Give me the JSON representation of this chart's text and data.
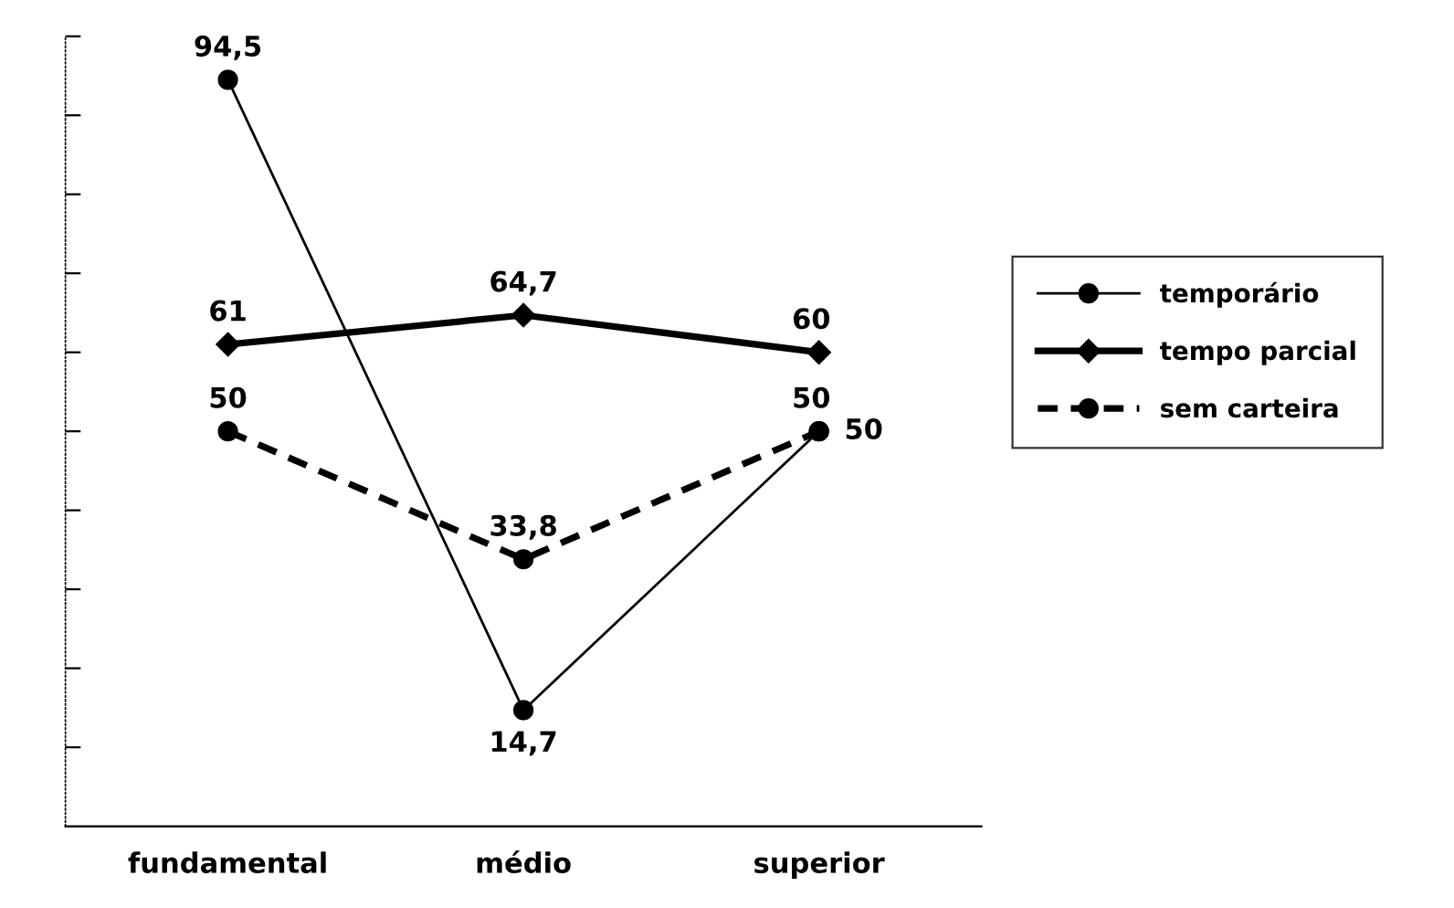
{
  "chart_data": {
    "type": "line",
    "categories": [
      "fundamental",
      "médio",
      "superior"
    ],
    "series": [
      {
        "name": "temporário",
        "color": "#000000",
        "values": [
          94.5,
          14.7,
          50
        ],
        "value_labels": [
          "94,5",
          "14,7",
          "50"
        ],
        "marker": "circle",
        "line_style": "solid"
      },
      {
        "name": "tempo parcial",
        "color": "#000000",
        "values": [
          61,
          64.7,
          60
        ],
        "value_labels": [
          "61",
          "64,7",
          "60"
        ],
        "marker": "diamond",
        "line_style": "solid"
      },
      {
        "name": "sem carteira",
        "color": "#000000",
        "values": [
          50,
          33.8,
          50
        ],
        "value_labels": [
          "50",
          "33,8",
          "50"
        ],
        "marker": "circle",
        "line_style": "dashed"
      }
    ],
    "ylim": [
      0,
      100
    ],
    "yticks": [
      {
        "value": 10,
        "label": null
      },
      {
        "value": 20,
        "label": null
      },
      {
        "value": 30,
        "label": null
      },
      {
        "value": 40,
        "label": null
      },
      {
        "value": 50,
        "label": null
      },
      {
        "value": 60,
        "label": null
      },
      {
        "value": 70,
        "label": null
      },
      {
        "value": 80,
        "label": null
      },
      {
        "value": 90,
        "label": null
      },
      {
        "value": 100,
        "label": null
      }
    ],
    "tick_labels": "x",
    "grid": false,
    "legend": "right"
  }
}
